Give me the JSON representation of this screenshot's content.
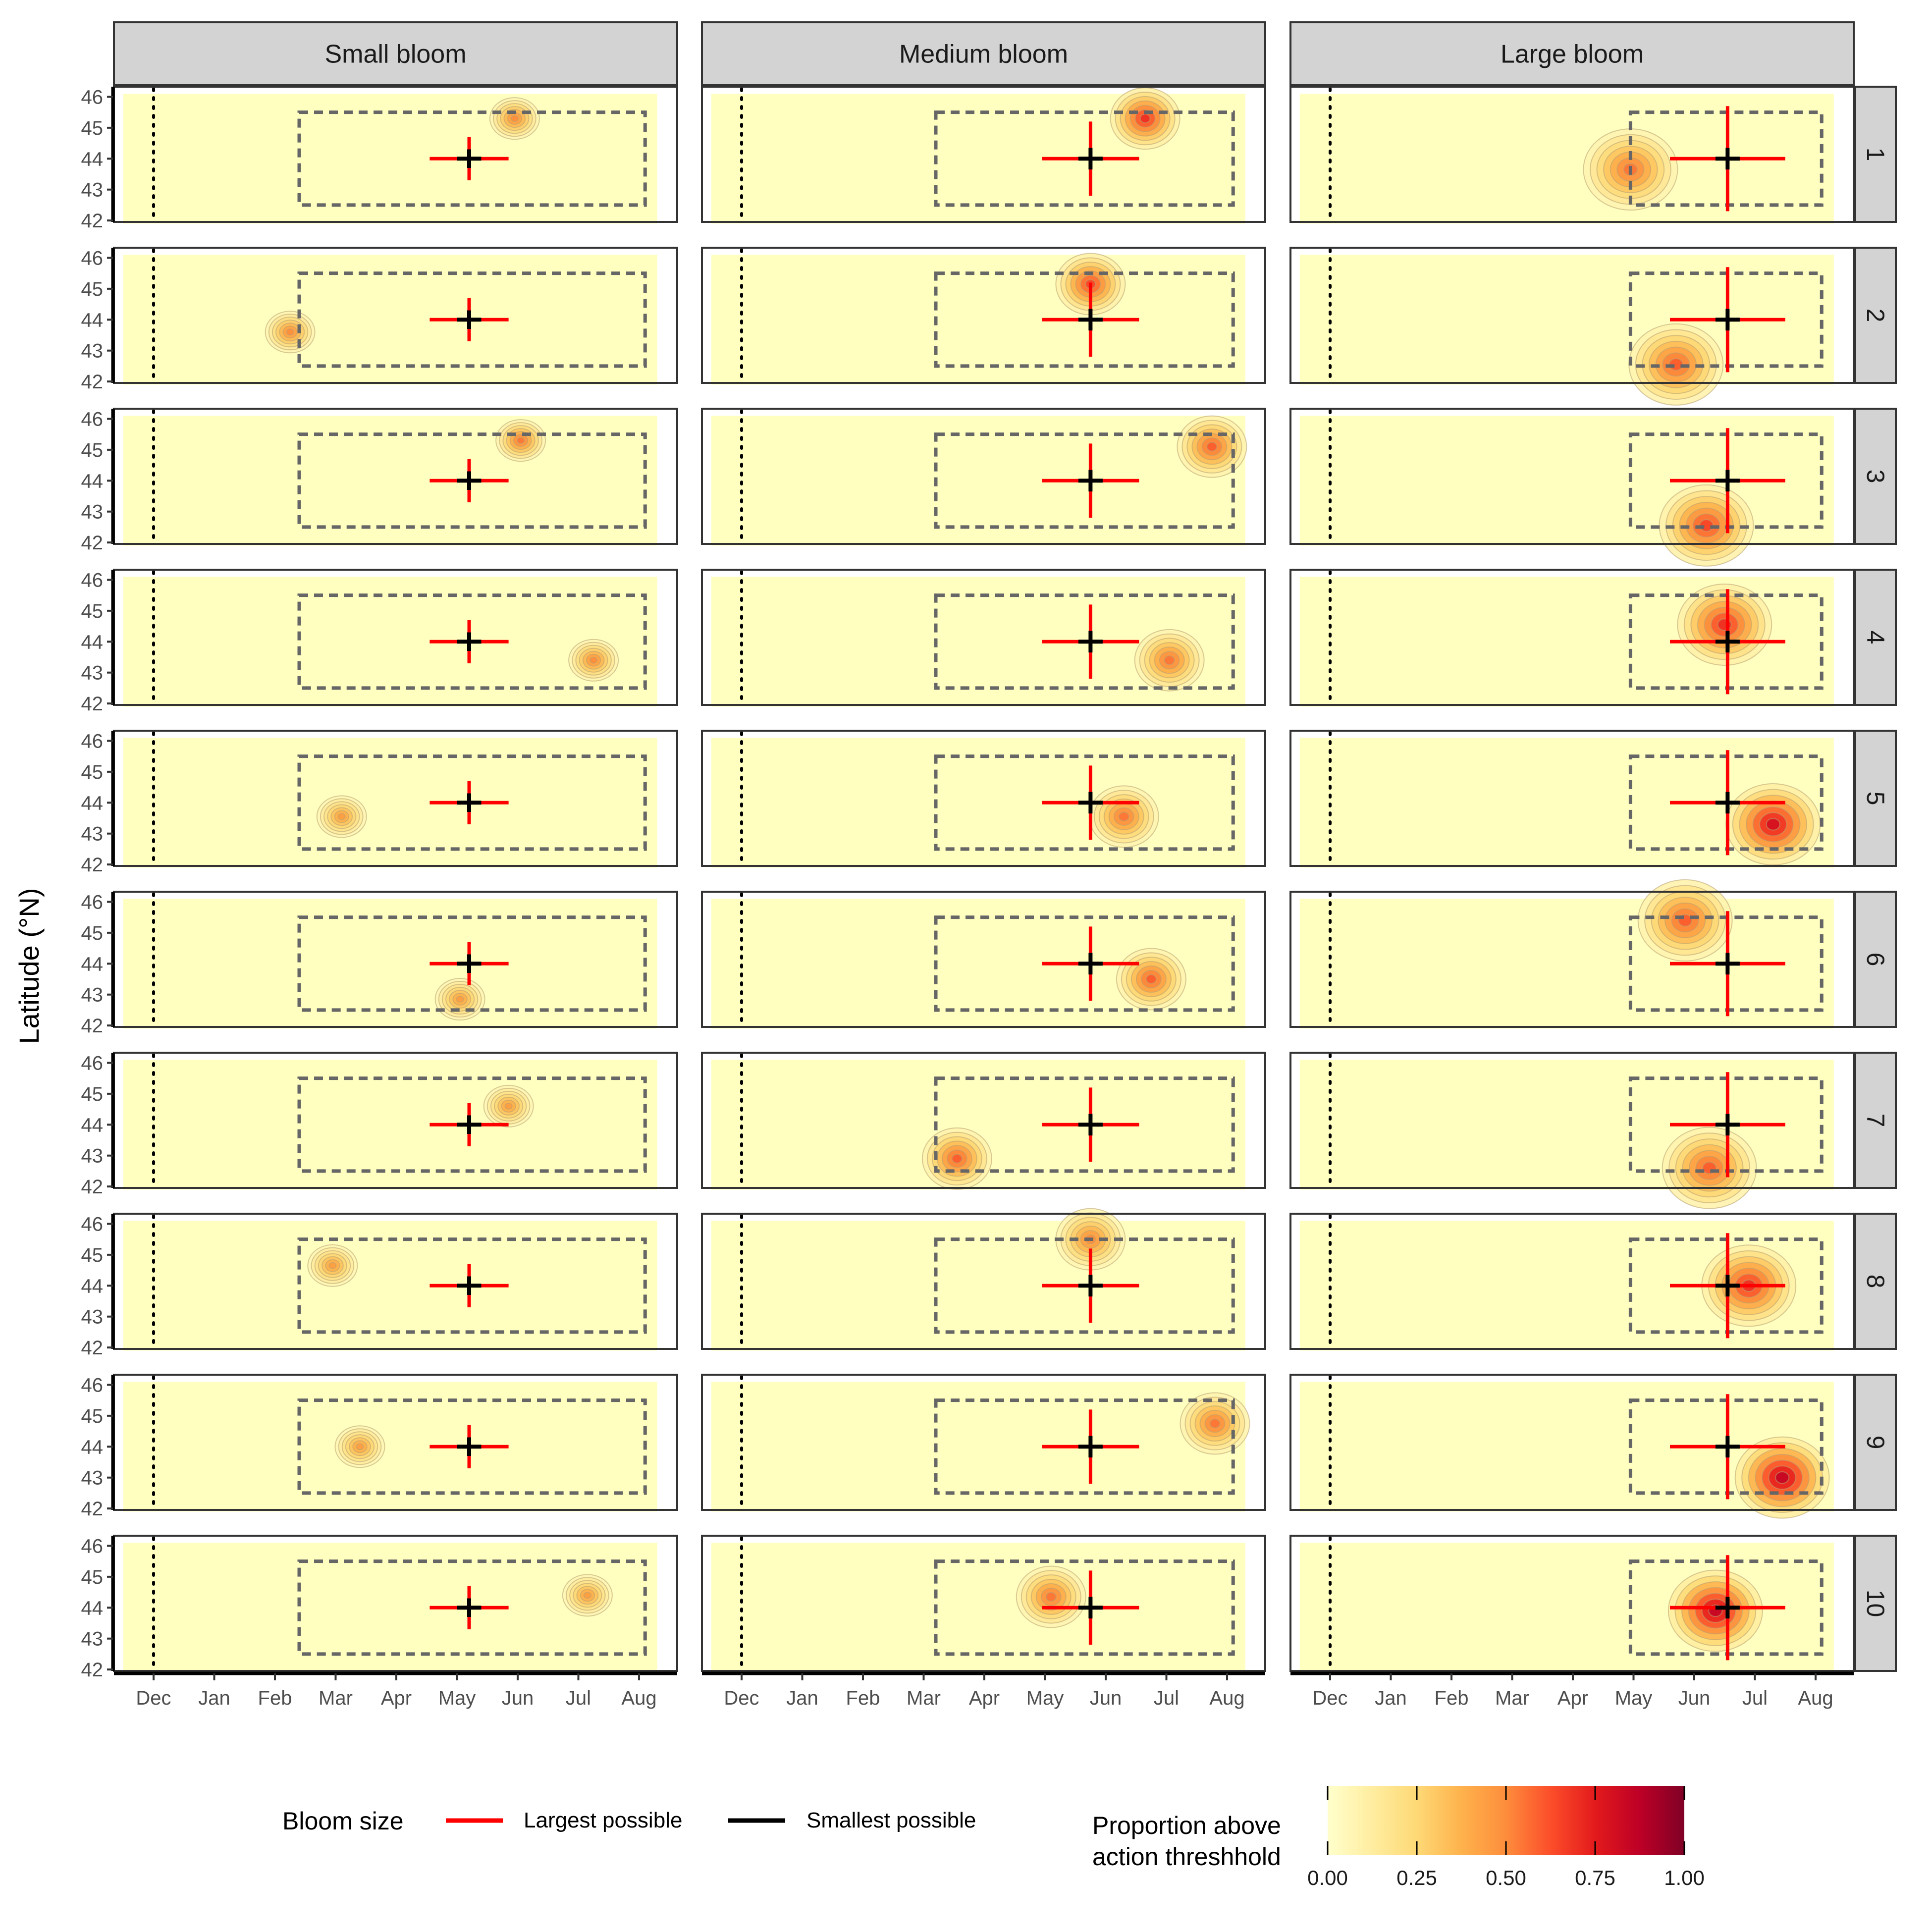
{
  "chart_data": {
    "type": "faceted-contour",
    "ylabel": "Latitude (°N)",
    "xlabel": "",
    "x_ticks": [
      "Dec",
      "Jan",
      "Feb",
      "Mar",
      "Apr",
      "May",
      "Jun",
      "Jul",
      "Aug"
    ],
    "y_ticks": [
      42,
      43,
      44,
      45,
      46
    ],
    "ylim": [
      41.9,
      46.2
    ],
    "column_facets": [
      "Small bloom",
      "Medium bloom",
      "Large bloom"
    ],
    "row_facets": [
      "1",
      "2",
      "3",
      "4",
      "5",
      "6",
      "7",
      "8",
      "9",
      "10"
    ],
    "reference_line_month": "Dec",
    "legend": {
      "bloom_title": "Bloom size",
      "largest_label": "Largest possible",
      "smallest_label": "Smallest possible",
      "largest_color": "#ff0000",
      "smallest_color": "#000000",
      "fill_title_line1": "Proportion above",
      "fill_title_line2": "action threshhold",
      "fill_ticks": [
        "0.00",
        "0.25",
        "0.50",
        "0.75",
        "1.00"
      ],
      "fill_colors": [
        "#ffffcc",
        "#ffeda0",
        "#fed976",
        "#feb24c",
        "#fd8d3c",
        "#fc4e2a",
        "#e31a1c",
        "#bd0026",
        "#800026"
      ]
    },
    "columns": [
      {
        "facet": "Small bloom",
        "region_month": [
          2.4,
          8.1
        ],
        "region_lat": [
          42.5,
          45.5
        ],
        "cross_center": [
          5.2,
          44.0
        ],
        "largest_half_width_months": 0.65,
        "largest_half_height_lat": 0.7,
        "smallest_half_width_months": 0.2,
        "smallest_half_height_lat": 0.3,
        "blobs": [
          {
            "row": "1",
            "month": 5.95,
            "lat": 45.3,
            "peak": 0.5
          },
          {
            "row": "2",
            "month": 2.25,
            "lat": 43.6,
            "peak": 0.5
          },
          {
            "row": "3",
            "month": 6.05,
            "lat": 45.3,
            "peak": 0.55
          },
          {
            "row": "4",
            "month": 7.25,
            "lat": 43.4,
            "peak": 0.5
          },
          {
            "row": "5",
            "month": 3.1,
            "lat": 43.55,
            "peak": 0.45
          },
          {
            "row": "6",
            "month": 5.05,
            "lat": 42.85,
            "peak": 0.45
          },
          {
            "row": "7",
            "month": 5.85,
            "lat": 44.6,
            "peak": 0.45
          },
          {
            "row": "8",
            "month": 2.95,
            "lat": 44.65,
            "peak": 0.45
          },
          {
            "row": "9",
            "month": 3.4,
            "lat": 44.0,
            "peak": 0.45
          },
          {
            "row": "10",
            "month": 7.15,
            "lat": 44.4,
            "peak": 0.45
          }
        ]
      },
      {
        "facet": "Medium bloom",
        "region_month": [
          3.2,
          8.1
        ],
        "region_lat": [
          42.5,
          45.5
        ],
        "cross_center": [
          5.75,
          44.0
        ],
        "largest_half_width_months": 0.8,
        "largest_half_height_lat": 1.2,
        "smallest_half_width_months": 0.2,
        "smallest_half_height_lat": 0.35,
        "blobs": [
          {
            "row": "1",
            "month": 6.65,
            "lat": 45.3,
            "peak": 0.7
          },
          {
            "row": "2",
            "month": 5.75,
            "lat": 45.15,
            "peak": 0.65
          },
          {
            "row": "3",
            "month": 7.75,
            "lat": 45.1,
            "peak": 0.6
          },
          {
            "row": "4",
            "month": 7.05,
            "lat": 43.4,
            "peak": 0.55
          },
          {
            "row": "5",
            "month": 6.3,
            "lat": 43.55,
            "peak": 0.55
          },
          {
            "row": "6",
            "month": 6.75,
            "lat": 43.5,
            "peak": 0.6
          },
          {
            "row": "7",
            "month": 3.55,
            "lat": 42.9,
            "peak": 0.6
          },
          {
            "row": "8",
            "month": 5.75,
            "lat": 45.5,
            "peak": 0.5
          },
          {
            "row": "9",
            "month": 7.8,
            "lat": 44.75,
            "peak": 0.55
          },
          {
            "row": "10",
            "month": 5.1,
            "lat": 44.35,
            "peak": 0.55
          }
        ]
      },
      {
        "facet": "Large bloom",
        "region_month": [
          4.95,
          8.1
        ],
        "region_lat": [
          42.5,
          45.5
        ],
        "cross_center": [
          6.55,
          44.0
        ],
        "largest_half_width_months": 0.95,
        "largest_half_height_lat": 1.7,
        "smallest_half_width_months": 0.2,
        "smallest_half_height_lat": 0.35,
        "blobs": [
          {
            "row": "1",
            "month": 4.95,
            "lat": 43.65,
            "peak": 0.55
          },
          {
            "row": "2",
            "month": 5.7,
            "lat": 42.55,
            "peak": 0.6
          },
          {
            "row": "3",
            "month": 6.2,
            "lat": 42.55,
            "peak": 0.65
          },
          {
            "row": "4",
            "month": 6.5,
            "lat": 44.55,
            "peak": 0.7
          },
          {
            "row": "5",
            "month": 7.3,
            "lat": 43.3,
            "peak": 0.8
          },
          {
            "row": "6",
            "month": 5.85,
            "lat": 45.4,
            "peak": 0.6
          },
          {
            "row": "7",
            "month": 6.25,
            "lat": 42.6,
            "peak": 0.6
          },
          {
            "row": "8",
            "month": 6.9,
            "lat": 44.0,
            "peak": 0.7
          },
          {
            "row": "9",
            "month": 7.45,
            "lat": 43.0,
            "peak": 0.85
          },
          {
            "row": "10",
            "month": 6.35,
            "lat": 43.9,
            "peak": 0.85
          }
        ]
      }
    ]
  }
}
